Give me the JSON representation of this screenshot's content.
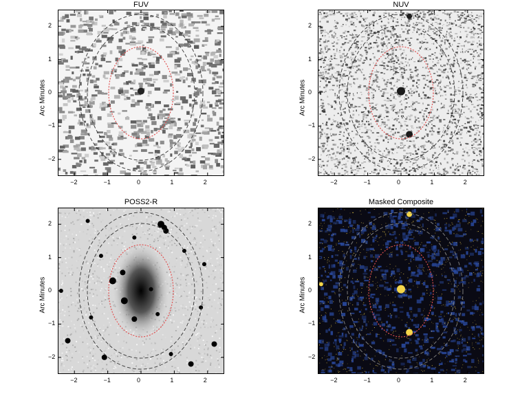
{
  "panels": [
    {
      "id": "fuv",
      "title": "FUV",
      "ylabel": "Arc Minutes",
      "style": "fuv"
    },
    {
      "id": "nuv",
      "title": "NUV",
      "ylabel": "Arc Minutes",
      "style": "nuv"
    },
    {
      "id": "poss",
      "title": "POSS2-R",
      "ylabel": "Arc Minutes",
      "style": "poss"
    },
    {
      "id": "comp",
      "title": "Masked Composite",
      "ylabel": "Arc Minutes",
      "style": "comp"
    }
  ],
  "axes": {
    "xlim": [
      -2.5,
      2.5
    ],
    "ylim": [
      -2.5,
      2.5
    ],
    "xticks": [
      "−2",
      "−1",
      "0",
      "1",
      "2"
    ],
    "yticks": [
      "−2",
      "−1",
      "0",
      "1",
      "2"
    ]
  },
  "colors": {
    "aperture_inner": "#e05050",
    "aperture_outer": "#333333",
    "composite_bg": "#0a0a14",
    "composite_blue": "#2a4aa0",
    "composite_yellow": "#e8c84a"
  }
}
